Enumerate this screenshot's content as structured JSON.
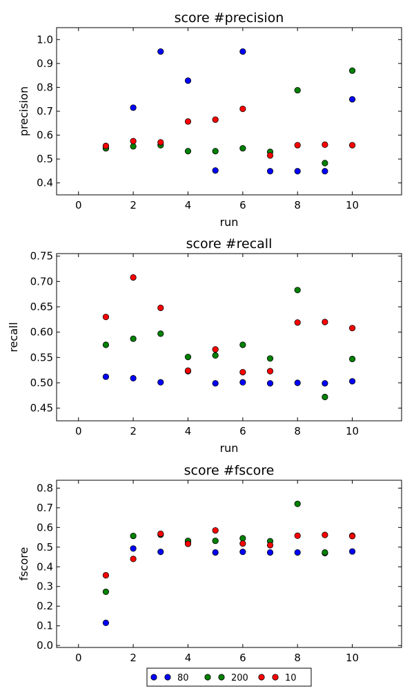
{
  "chart_data": [
    {
      "type": "scatter",
      "title": "score #precision",
      "xlabel": "run",
      "ylabel": "precision",
      "xlim": [
        -0.8,
        11.8
      ],
      "ylim": [
        0.35,
        1.05
      ],
      "xticks": [
        0,
        2,
        4,
        6,
        8,
        10
      ],
      "yticks": [
        0.4,
        0.5,
        0.6,
        0.7,
        0.8,
        0.9,
        1.0
      ],
      "grid": false,
      "series": [
        {
          "name": "80",
          "color": "#0000ff",
          "x": [
            1,
            2,
            3,
            4,
            5,
            6,
            7,
            8,
            9,
            10
          ],
          "y": [
            0.545,
            0.715,
            0.95,
            0.828,
            0.452,
            0.95,
            0.449,
            0.449,
            0.449,
            0.75
          ]
        },
        {
          "name": "200",
          "color": "#008000",
          "x": [
            1,
            2,
            3,
            4,
            5,
            6,
            7,
            8,
            9,
            10
          ],
          "y": [
            0.545,
            0.553,
            0.558,
            0.533,
            0.533,
            0.545,
            0.53,
            0.788,
            0.483,
            0.87
          ]
        },
        {
          "name": "10",
          "color": "#ff0000",
          "x": [
            1,
            2,
            3,
            4,
            5,
            6,
            7,
            8,
            9,
            10
          ],
          "y": [
            0.555,
            0.575,
            0.57,
            0.657,
            0.665,
            0.71,
            0.515,
            0.558,
            0.56,
            0.558
          ]
        }
      ]
    },
    {
      "type": "scatter",
      "title": "score #recall",
      "xlabel": "run",
      "ylabel": "recall",
      "xlim": [
        -0.8,
        11.8
      ],
      "ylim": [
        0.425,
        0.755
      ],
      "xticks": [
        0,
        2,
        4,
        6,
        8,
        10
      ],
      "yticks": [
        0.45,
        0.5,
        0.55,
        0.6,
        0.65,
        0.7,
        0.75
      ],
      "grid": false,
      "series": [
        {
          "name": "80",
          "color": "#0000ff",
          "x": [
            1,
            2,
            3,
            4,
            5,
            6,
            7,
            8,
            9,
            10
          ],
          "y": [
            0.512,
            0.509,
            0.501,
            0.523,
            0.499,
            0.501,
            0.499,
            0.5,
            0.499,
            0.503
          ]
        },
        {
          "name": "200",
          "color": "#008000",
          "x": [
            1,
            2,
            3,
            4,
            5,
            6,
            7,
            8,
            9,
            10
          ],
          "y": [
            0.575,
            0.587,
            0.597,
            0.551,
            0.554,
            0.575,
            0.548,
            0.683,
            0.472,
            0.547
          ]
        },
        {
          "name": "10",
          "color": "#ff0000",
          "x": [
            1,
            2,
            3,
            4,
            5,
            6,
            7,
            8,
            9,
            10
          ],
          "y": [
            0.63,
            0.708,
            0.648,
            0.524,
            0.566,
            0.521,
            0.523,
            0.619,
            0.62,
            0.608
          ]
        }
      ]
    },
    {
      "type": "scatter",
      "title": "score #fscore",
      "xlabel": "",
      "ylabel": "fscore",
      "xlim": [
        -0.8,
        11.8
      ],
      "ylim": [
        -0.01,
        0.84
      ],
      "xticks": [
        0,
        2,
        4,
        6,
        8,
        10
      ],
      "yticks": [
        0.0,
        0.1,
        0.2,
        0.3,
        0.4,
        0.5,
        0.6,
        0.7,
        0.8
      ],
      "grid": false,
      "legend": "bottom-center, outside",
      "series": [
        {
          "name": "80",
          "color": "#0000ff",
          "x": [
            1,
            2,
            3,
            4,
            5,
            6,
            7,
            8,
            9,
            10
          ],
          "y": [
            0.115,
            0.493,
            0.476,
            0.527,
            0.473,
            0.476,
            0.473,
            0.473,
            0.47,
            0.478
          ]
        },
        {
          "name": "200",
          "color": "#008000",
          "x": [
            1,
            2,
            3,
            4,
            5,
            6,
            7,
            8,
            9,
            10
          ],
          "y": [
            0.273,
            0.557,
            0.563,
            0.532,
            0.532,
            0.545,
            0.53,
            0.72,
            0.473,
            0.558
          ]
        },
        {
          "name": "10",
          "color": "#ff0000",
          "x": [
            1,
            2,
            3,
            4,
            5,
            6,
            7,
            8,
            9,
            10
          ],
          "y": [
            0.357,
            0.44,
            0.568,
            0.517,
            0.585,
            0.518,
            0.51,
            0.558,
            0.562,
            0.556
          ]
        }
      ]
    }
  ]
}
